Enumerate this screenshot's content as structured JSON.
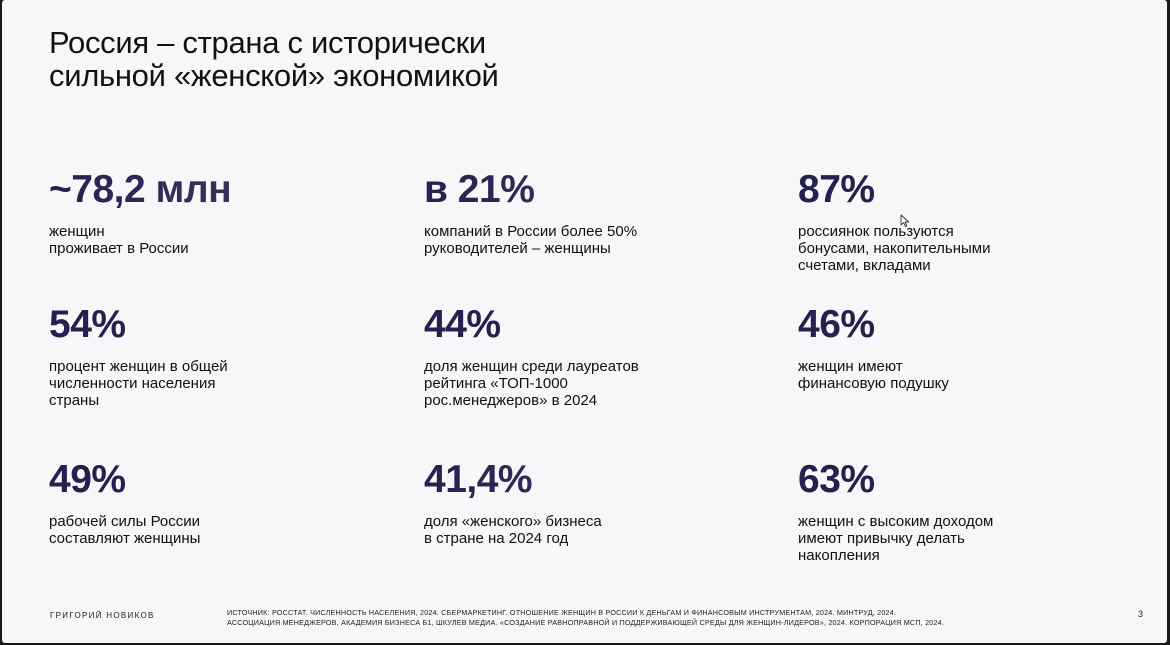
{
  "slide": {
    "title": "Россия – страна с исторически\nсильной «женской» экономикой",
    "stats": [
      {
        "value": "~78,2 млн",
        "description": "женщин\nпроживает в России"
      },
      {
        "value": "в 21%",
        "description": "компаний в России более 50%\nруководителей – женщины"
      },
      {
        "value": "87%",
        "description": "россиянок пользуются\nбонусами, накопительными\nсчетами, вкладами"
      },
      {
        "value": "54%",
        "description": "процент женщин в общей\nчисленности населения\nстраны"
      },
      {
        "value": "44%",
        "description": "доля женщин среди лауреатов\nрейтинга «ТОП-1000\nрос.менеджеров» в 2024"
      },
      {
        "value": "46%",
        "description": "женщин имеют\nфинансовую подушку"
      },
      {
        "value": "49%",
        "description": "рабочей силы России\nсоставляют женщины"
      },
      {
        "value": "41,4%",
        "description": "доля «женского» бизнеса\nв стране на 2024 год"
      },
      {
        "value": "63%",
        "description": "женщин с высоким доходом\nимеют привычку делать\nнакопления"
      }
    ],
    "footer": {
      "author": "ГРИГОРИЙ НОВИКОВ",
      "source": "ИСТОЧНИК: РОССТАТ. ЧИСЛЕННОСТЬ НАСЕЛЕНИЯ, 2024. СБЕРМАРКЕТИНГ. ОТНОШЕНИЕ ЖЕНЩИН В РОССИИ К ДЕНЬГАМ И ФИНАНСОВЫМ ИНСТРУМЕНТАМ, 2024. МИНТРУД, 2024.\nАССОЦИАЦИЯ МЕНЕДЖЕРОВ, АКАДЕМИЯ БИЗНЕСА Б1, ШКУЛЕВ МЕДИА. «СОЗДАНИЕ РАВНОПРАВНОЙ И ПОДДЕРЖИВАЮЩЕЙ СРЕДЫ ДЛЯ ЖЕНЩИН-ЛИДЕРОВ», 2024. КОРПОРАЦИЯ МСП, 2024.",
      "page_number": "3"
    },
    "cursor_icon": "arrow-cursor-icon"
  }
}
